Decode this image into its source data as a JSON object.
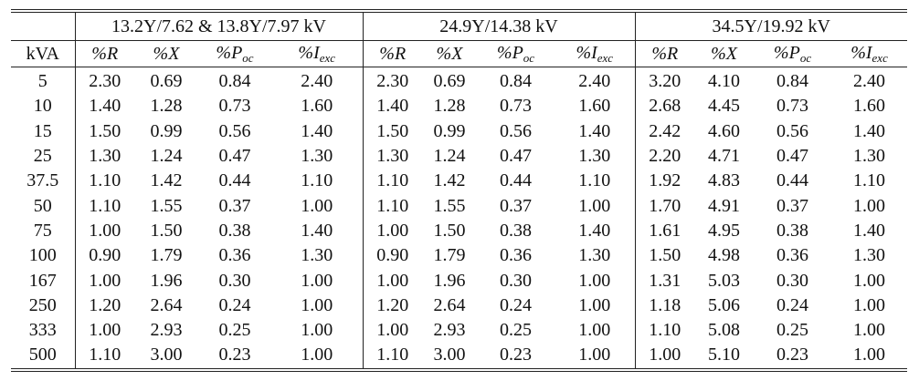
{
  "table": {
    "group_headers": [
      "13.2Y/7.62 & 13.8Y/7.97 kV",
      "24.9Y/14.38 kV",
      "34.5Y/19.92 kV"
    ],
    "column_headers": [
      "kVA",
      "%R",
      "%X",
      {
        "base": "%P",
        "sub": "oc"
      },
      {
        "base": "%I",
        "sub": "exc"
      },
      "%R",
      "%X",
      {
        "base": "%P",
        "sub": "oc"
      },
      {
        "base": "%I",
        "sub": "exc"
      },
      "%R",
      "%X",
      {
        "base": "%P",
        "sub": "oc"
      },
      {
        "base": "%I",
        "sub": "exc"
      }
    ],
    "rows": [
      [
        "5",
        "2.30",
        "0.69",
        "0.84",
        "2.40",
        "2.30",
        "0.69",
        "0.84",
        "2.40",
        "3.20",
        "4.10",
        "0.84",
        "2.40"
      ],
      [
        "10",
        "1.40",
        "1.28",
        "0.73",
        "1.60",
        "1.40",
        "1.28",
        "0.73",
        "1.60",
        "2.68",
        "4.45",
        "0.73",
        "1.60"
      ],
      [
        "15",
        "1.50",
        "0.99",
        "0.56",
        "1.40",
        "1.50",
        "0.99",
        "0.56",
        "1.40",
        "2.42",
        "4.60",
        "0.56",
        "1.40"
      ],
      [
        "25",
        "1.30",
        "1.24",
        "0.47",
        "1.30",
        "1.30",
        "1.24",
        "0.47",
        "1.30",
        "2.20",
        "4.71",
        "0.47",
        "1.30"
      ],
      [
        "37.5",
        "1.10",
        "1.42",
        "0.44",
        "1.10",
        "1.10",
        "1.42",
        "0.44",
        "1.10",
        "1.92",
        "4.83",
        "0.44",
        "1.10"
      ],
      [
        "50",
        "1.10",
        "1.55",
        "0.37",
        "1.00",
        "1.10",
        "1.55",
        "0.37",
        "1.00",
        "1.70",
        "4.91",
        "0.37",
        "1.00"
      ],
      [
        "75",
        "1.00",
        "1.50",
        "0.38",
        "1.40",
        "1.00",
        "1.50",
        "0.38",
        "1.40",
        "1.61",
        "4.95",
        "0.38",
        "1.40"
      ],
      [
        "100",
        "0.90",
        "1.79",
        "0.36",
        "1.30",
        "0.90",
        "1.79",
        "0.36",
        "1.30",
        "1.50",
        "4.98",
        "0.36",
        "1.30"
      ],
      [
        "167",
        "1.00",
        "1.96",
        "0.30",
        "1.00",
        "1.00",
        "1.96",
        "0.30",
        "1.00",
        "1.31",
        "5.03",
        "0.30",
        "1.00"
      ],
      [
        "250",
        "1.20",
        "2.64",
        "0.24",
        "1.00",
        "1.20",
        "2.64",
        "0.24",
        "1.00",
        "1.18",
        "5.06",
        "0.24",
        "1.00"
      ],
      [
        "333",
        "1.00",
        "2.93",
        "0.25",
        "1.00",
        "1.00",
        "2.93",
        "0.25",
        "1.00",
        "1.10",
        "5.08",
        "0.25",
        "1.00"
      ],
      [
        "500",
        "1.10",
        "3.00",
        "0.23",
        "1.00",
        "1.10",
        "3.00",
        "0.23",
        "1.00",
        "1.00",
        "5.10",
        "0.23",
        "1.00"
      ]
    ]
  }
}
